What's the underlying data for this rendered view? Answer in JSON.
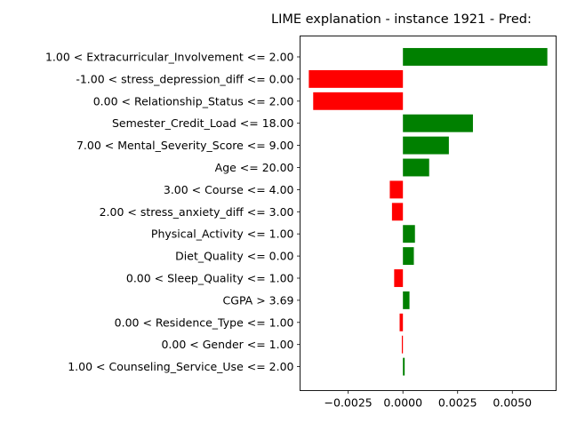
{
  "chart_data": {
    "type": "bar",
    "orientation": "horizontal",
    "title": "LIME explanation - instance 1921 - Pred:",
    "xlabel": "",
    "ylabel": "",
    "xlim": [
      -0.0047,
      0.007
    ],
    "xticks": [
      -0.0025,
      0.0,
      0.0025,
      0.005
    ],
    "xtick_labels": [
      "−0.0025",
      "0.0000",
      "0.0025",
      "0.0050"
    ],
    "grid": false,
    "colors": {
      "positive": "#008000",
      "negative": "#ff0000"
    },
    "categories": [
      "1.00 < Extracurricular_Involvement <= 2.00",
      "-1.00 < stress_depression_diff <= 0.00",
      "0.00 < Relationship_Status <= 2.00",
      "Semester_Credit_Load <= 18.00",
      "7.00 < Mental_Severity_Score <= 9.00",
      "Age <= 20.00",
      "3.00 < Course <= 4.00",
      "2.00 < stress_anxiety_diff <= 3.00",
      "Physical_Activity <= 1.00",
      "Diet_Quality <= 0.00",
      "0.00 < Sleep_Quality <= 1.00",
      "CGPA > 3.69",
      "0.00 < Residence_Type <= 1.00",
      "0.00 < Gender <= 1.00",
      "1.00 < Counseling_Service_Use <= 2.00"
    ],
    "values": [
      0.0066,
      -0.0043,
      -0.0041,
      0.0032,
      0.0021,
      0.0012,
      -0.0006,
      -0.0005,
      0.00055,
      0.0005,
      -0.0004,
      0.0003,
      -0.00015,
      -5e-05,
      8e-05
    ]
  }
}
